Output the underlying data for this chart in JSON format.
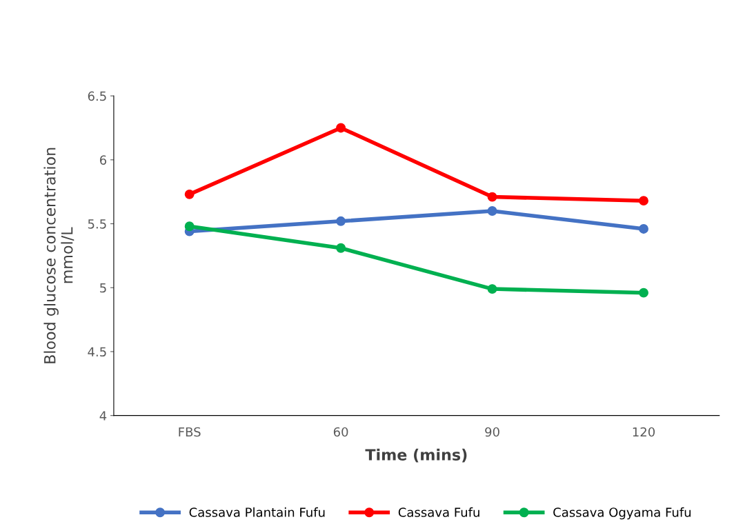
{
  "chart_data": {
    "type": "line",
    "xlabel": "Time (mins)",
    "ylabel": "Blood glucose concentration\nmmol/L",
    "categories": [
      "FBS",
      "60",
      "90",
      "120"
    ],
    "series": [
      {
        "name": "Cassava Plantain Fufu",
        "color": "#4472c4",
        "values": [
          5.44,
          5.52,
          5.6,
          5.46
        ]
      },
      {
        "name": "Cassava Fufu",
        "color": "#ff0000",
        "values": [
          5.73,
          6.25,
          5.71,
          5.68
        ]
      },
      {
        "name": "Cassava Ogyama Fufu",
        "color": "#00b050",
        "values": [
          5.48,
          5.31,
          4.99,
          4.96
        ]
      }
    ],
    "ylim": [
      4,
      6.5
    ],
    "yticks": [
      4,
      4.5,
      5,
      5.5,
      6,
      6.5
    ],
    "grid": false,
    "legend": "bottom",
    "marker": "circle",
    "line_style": "solid"
  }
}
